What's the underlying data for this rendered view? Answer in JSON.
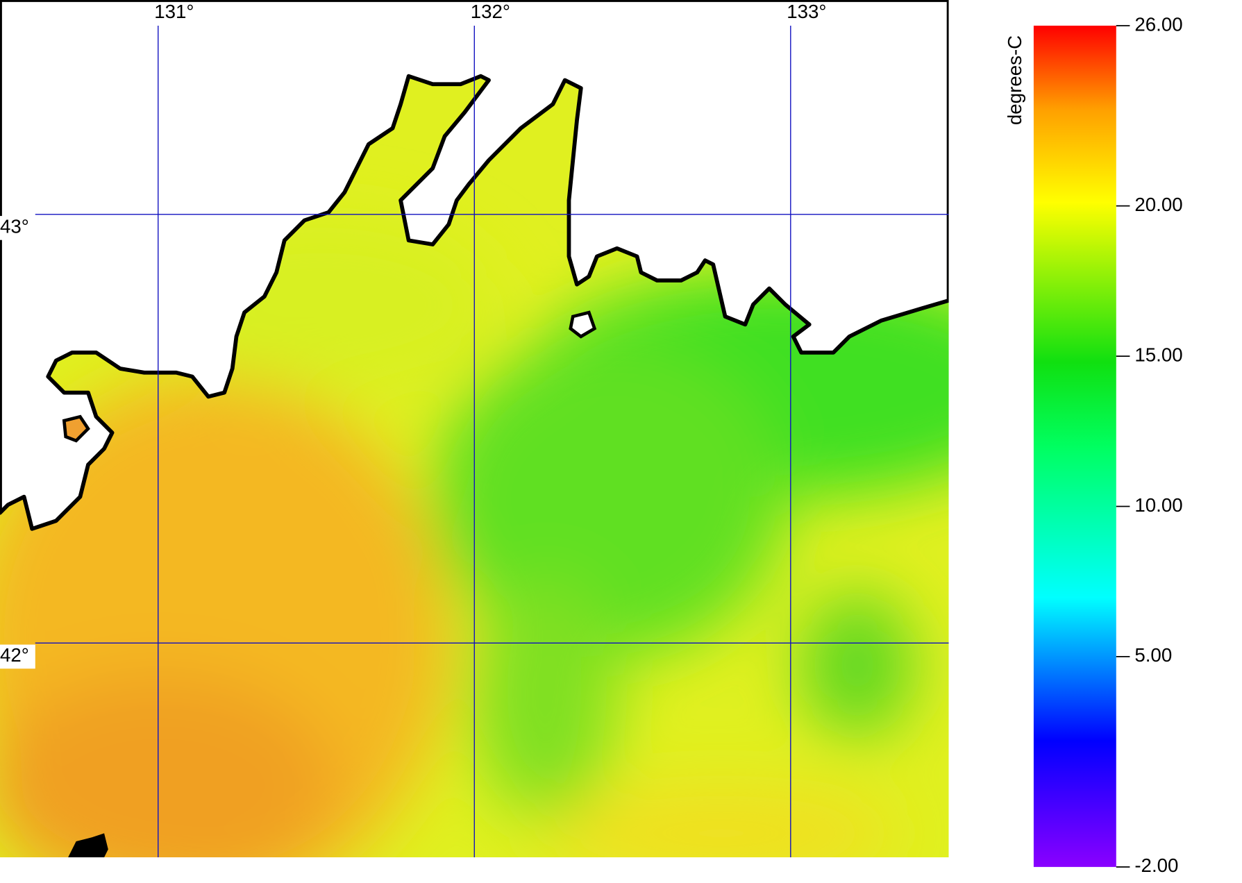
{
  "map": {
    "lonlim": [
      130.5,
      133.5
    ],
    "latlim": [
      43.5,
      41.5
    ],
    "longitudes": [
      {
        "value": 131,
        "label": "131°"
      },
      {
        "value": 132,
        "label": "132°"
      },
      {
        "value": 133,
        "label": "133°"
      }
    ],
    "latitudes": [
      {
        "value": 43,
        "label": "43°"
      },
      {
        "value": 42,
        "label": "42°"
      }
    ]
  },
  "colorbar": {
    "label": "degrees-C",
    "range": [
      -2,
      26
    ],
    "ticks": [
      {
        "value": 26,
        "label": "26.00"
      },
      {
        "value": 20,
        "label": "20.00"
      },
      {
        "value": 15,
        "label": "15.00"
      },
      {
        "value": 10,
        "label": "10.00"
      },
      {
        "value": 5,
        "label": "5.00"
      },
      {
        "value": -2,
        "label": "-2.00"
      }
    ]
  }
}
